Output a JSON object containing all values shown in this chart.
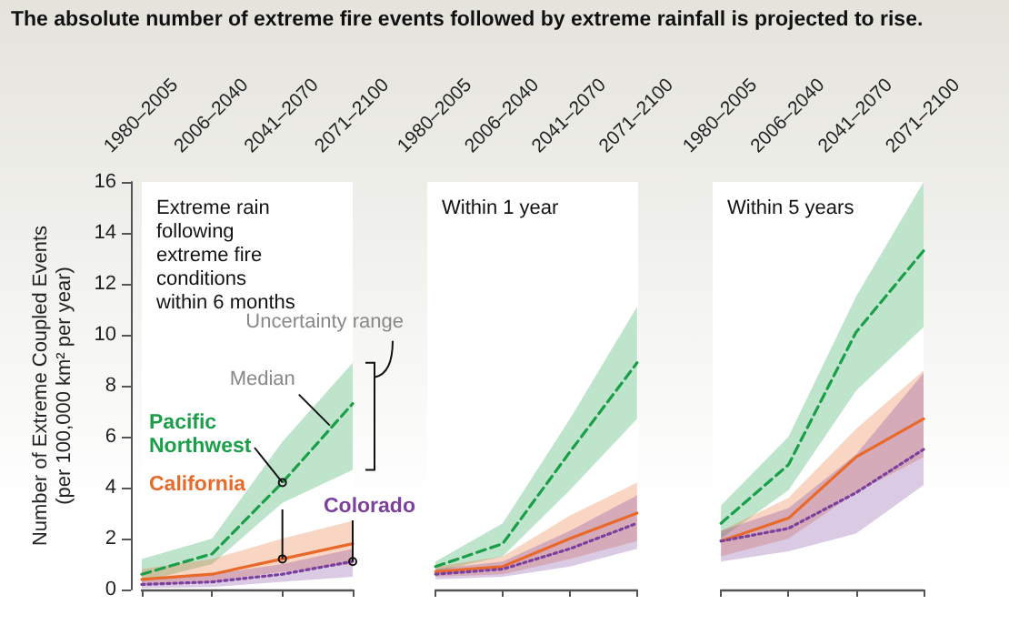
{
  "chart_data": [
    {
      "type": "line",
      "title": "The absolute number of extreme fire events followed by extreme rainfall is projected to rise.",
      "subtitle": "Extreme rain following extreme fire conditions within 6 months",
      "ylabel": "Number of Extreme Coupled Events\n(per 100,000 km² per year)",
      "categories": [
        "1980–2005",
        "2006–2040",
        "2041–2070",
        "2071–2100"
      ],
      "series": [
        {
          "name": "Pacific Northwest",
          "color": "#1a9e48",
          "line_style": "dashed",
          "values": [
            0.6,
            1.4,
            4.2,
            7.3
          ],
          "lower": [
            0.3,
            1.0,
            3.4,
            4.7
          ],
          "upper": [
            1.2,
            2.0,
            5.8,
            8.9
          ]
        },
        {
          "name": "California",
          "color": "#e8692a",
          "line_style": "solid",
          "values": [
            0.4,
            0.6,
            1.2,
            1.8
          ],
          "lower": [
            0.2,
            0.3,
            0.7,
            1.0
          ],
          "upper": [
            0.8,
            1.2,
            2.0,
            2.7
          ]
        },
        {
          "name": "Colorado",
          "color": "#7b3f9e",
          "line_style": "dotted",
          "values": [
            0.2,
            0.3,
            0.6,
            1.1
          ],
          "lower": [
            0.05,
            0.1,
            0.3,
            0.5
          ],
          "upper": [
            0.4,
            0.6,
            1.0,
            1.6
          ]
        }
      ],
      "annotations": [
        "Uncertainty range",
        "Median"
      ],
      "ylim": [
        0,
        16
      ],
      "yticks": [
        0,
        2,
        4,
        6,
        8,
        10,
        12,
        14,
        16
      ],
      "grid": false,
      "legend": false,
      "marker": "none"
    },
    {
      "type": "line",
      "subtitle": "Within 1 year",
      "categories": [
        "1980–2005",
        "2006–2040",
        "2041–2070",
        "2071–2100"
      ],
      "series": [
        {
          "color": "#1a9e48",
          "line_style": "dashed",
          "values": [
            0.9,
            1.8,
            5.4,
            8.9
          ],
          "lower": [
            0.7,
            1.3,
            3.9,
            6.7
          ],
          "upper": [
            1.1,
            2.6,
            6.7,
            11.1
          ]
        },
        {
          "color": "#e8692a",
          "line_style": "solid",
          "values": [
            0.7,
            0.9,
            2.0,
            3.0
          ],
          "lower": [
            0.5,
            0.6,
            1.2,
            1.9
          ],
          "upper": [
            0.9,
            1.3,
            2.9,
            4.2
          ]
        },
        {
          "color": "#7b3f9e",
          "line_style": "dotted",
          "values": [
            0.6,
            0.8,
            1.6,
            2.6
          ],
          "lower": [
            0.4,
            0.5,
            0.9,
            1.6
          ],
          "upper": [
            0.8,
            1.1,
            2.3,
            3.7
          ]
        }
      ],
      "ylim": [
        0,
        16
      ],
      "yticks": [
        0,
        2,
        4,
        6,
        8,
        10,
        12,
        14,
        16
      ],
      "tick_labels": "x",
      "grid": false,
      "legend": false,
      "marker": "none"
    },
    {
      "type": "line",
      "subtitle": "Within 5 years",
      "categories": [
        "1980–2005",
        "2006–2040",
        "2041–2070",
        "2071–2100"
      ],
      "series": [
        {
          "color": "#1a9e48",
          "line_style": "dashed",
          "values": [
            2.6,
            4.9,
            10.1,
            13.3
          ],
          "lower": [
            2.0,
            3.9,
            7.8,
            10.3
          ],
          "upper": [
            3.3,
            6.0,
            11.5,
            16
          ]
        },
        {
          "color": "#e8692a",
          "line_style": "solid",
          "values": [
            1.9,
            2.8,
            5.2,
            6.7
          ],
          "lower": [
            1.3,
            2.0,
            3.8,
            5.2
          ],
          "upper": [
            2.3,
            3.6,
            6.3,
            8.6
          ]
        },
        {
          "color": "#7b3f9e",
          "line_style": "dotted",
          "values": [
            1.9,
            2.4,
            3.8,
            5.5
          ],
          "lower": [
            1.1,
            1.5,
            2.2,
            4.1
          ],
          "upper": [
            2.3,
            3.2,
            5.3,
            8.5
          ]
        }
      ],
      "ylim": [
        0,
        16
      ],
      "yticks": [
        0,
        2,
        4,
        6,
        8,
        10,
        12,
        14,
        16
      ],
      "tick_labels": "x",
      "grid": false,
      "legend": false,
      "marker": "none"
    }
  ]
}
